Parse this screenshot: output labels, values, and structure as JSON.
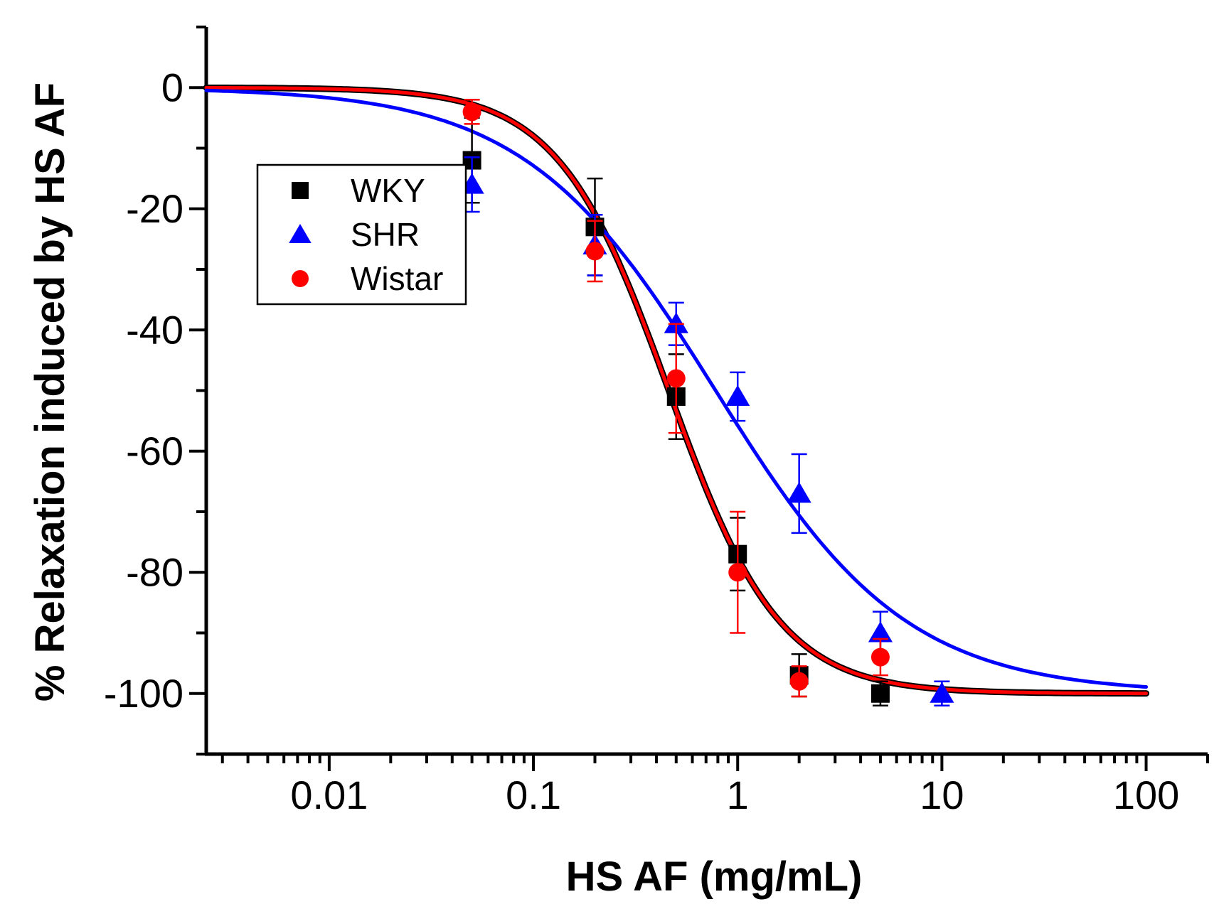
{
  "chart_data": {
    "type": "scatter",
    "title": "",
    "xlabel": "HS AF (mg/mL)",
    "ylabel": "% Relaxation induced by HS AF",
    "xscale": "log",
    "xlim": [
      0.0025,
      200
    ],
    "ylim": [
      -110,
      10
    ],
    "xticks": [
      {
        "value": 0.01,
        "label": "0.01"
      },
      {
        "value": 0.1,
        "label": "0.1"
      },
      {
        "value": 1,
        "label": "1"
      },
      {
        "value": 10,
        "label": "10"
      },
      {
        "value": 100,
        "label": "100"
      }
    ],
    "yticks": [
      {
        "value": 0,
        "label": "0"
      },
      {
        "value": -20,
        "label": "-20"
      },
      {
        "value": -40,
        "label": "-40"
      },
      {
        "value": -60,
        "label": "-60"
      },
      {
        "value": -80,
        "label": "-80"
      },
      {
        "value": -100,
        "label": "-100"
      }
    ],
    "legend_position": "upper-left",
    "series": [
      {
        "name": "WKY",
        "marker": "square",
        "color": "#000000",
        "x": [
          0.05,
          0.2,
          0.5,
          1,
          2,
          5
        ],
        "y": [
          -12,
          -23,
          -51,
          -77,
          -97,
          -100
        ],
        "err": [
          7,
          8,
          7,
          6,
          3.5,
          2
        ],
        "fit": {
          "bottom": -100,
          "top": 0,
          "ec50": 0.46,
          "hill": 1.6
        }
      },
      {
        "name": "SHR",
        "marker": "triangle",
        "color": "#0000ff",
        "x": [
          0.05,
          0.2,
          0.5,
          1,
          2,
          5,
          10
        ],
        "y": [
          -16,
          -26,
          -39,
          -51,
          -67,
          -90,
          -100
        ],
        "err": [
          4.5,
          5,
          3.5,
          4,
          6.5,
          3.5,
          2
        ],
        "fit": {
          "bottom": -100,
          "top": 0,
          "ec50": 0.78,
          "hill": 0.93
        }
      },
      {
        "name": "Wistar",
        "marker": "circle",
        "color": "#ff0000",
        "x": [
          0.05,
          0.2,
          0.5,
          1,
          2,
          5
        ],
        "y": [
          -4,
          -27,
          -48,
          -80,
          -98,
          -94
        ],
        "err": [
          2,
          5,
          9,
          10,
          2.5,
          3
        ],
        "fit": {
          "bottom": -100,
          "top": 0,
          "ec50": 0.46,
          "hill": 1.6
        }
      }
    ]
  }
}
